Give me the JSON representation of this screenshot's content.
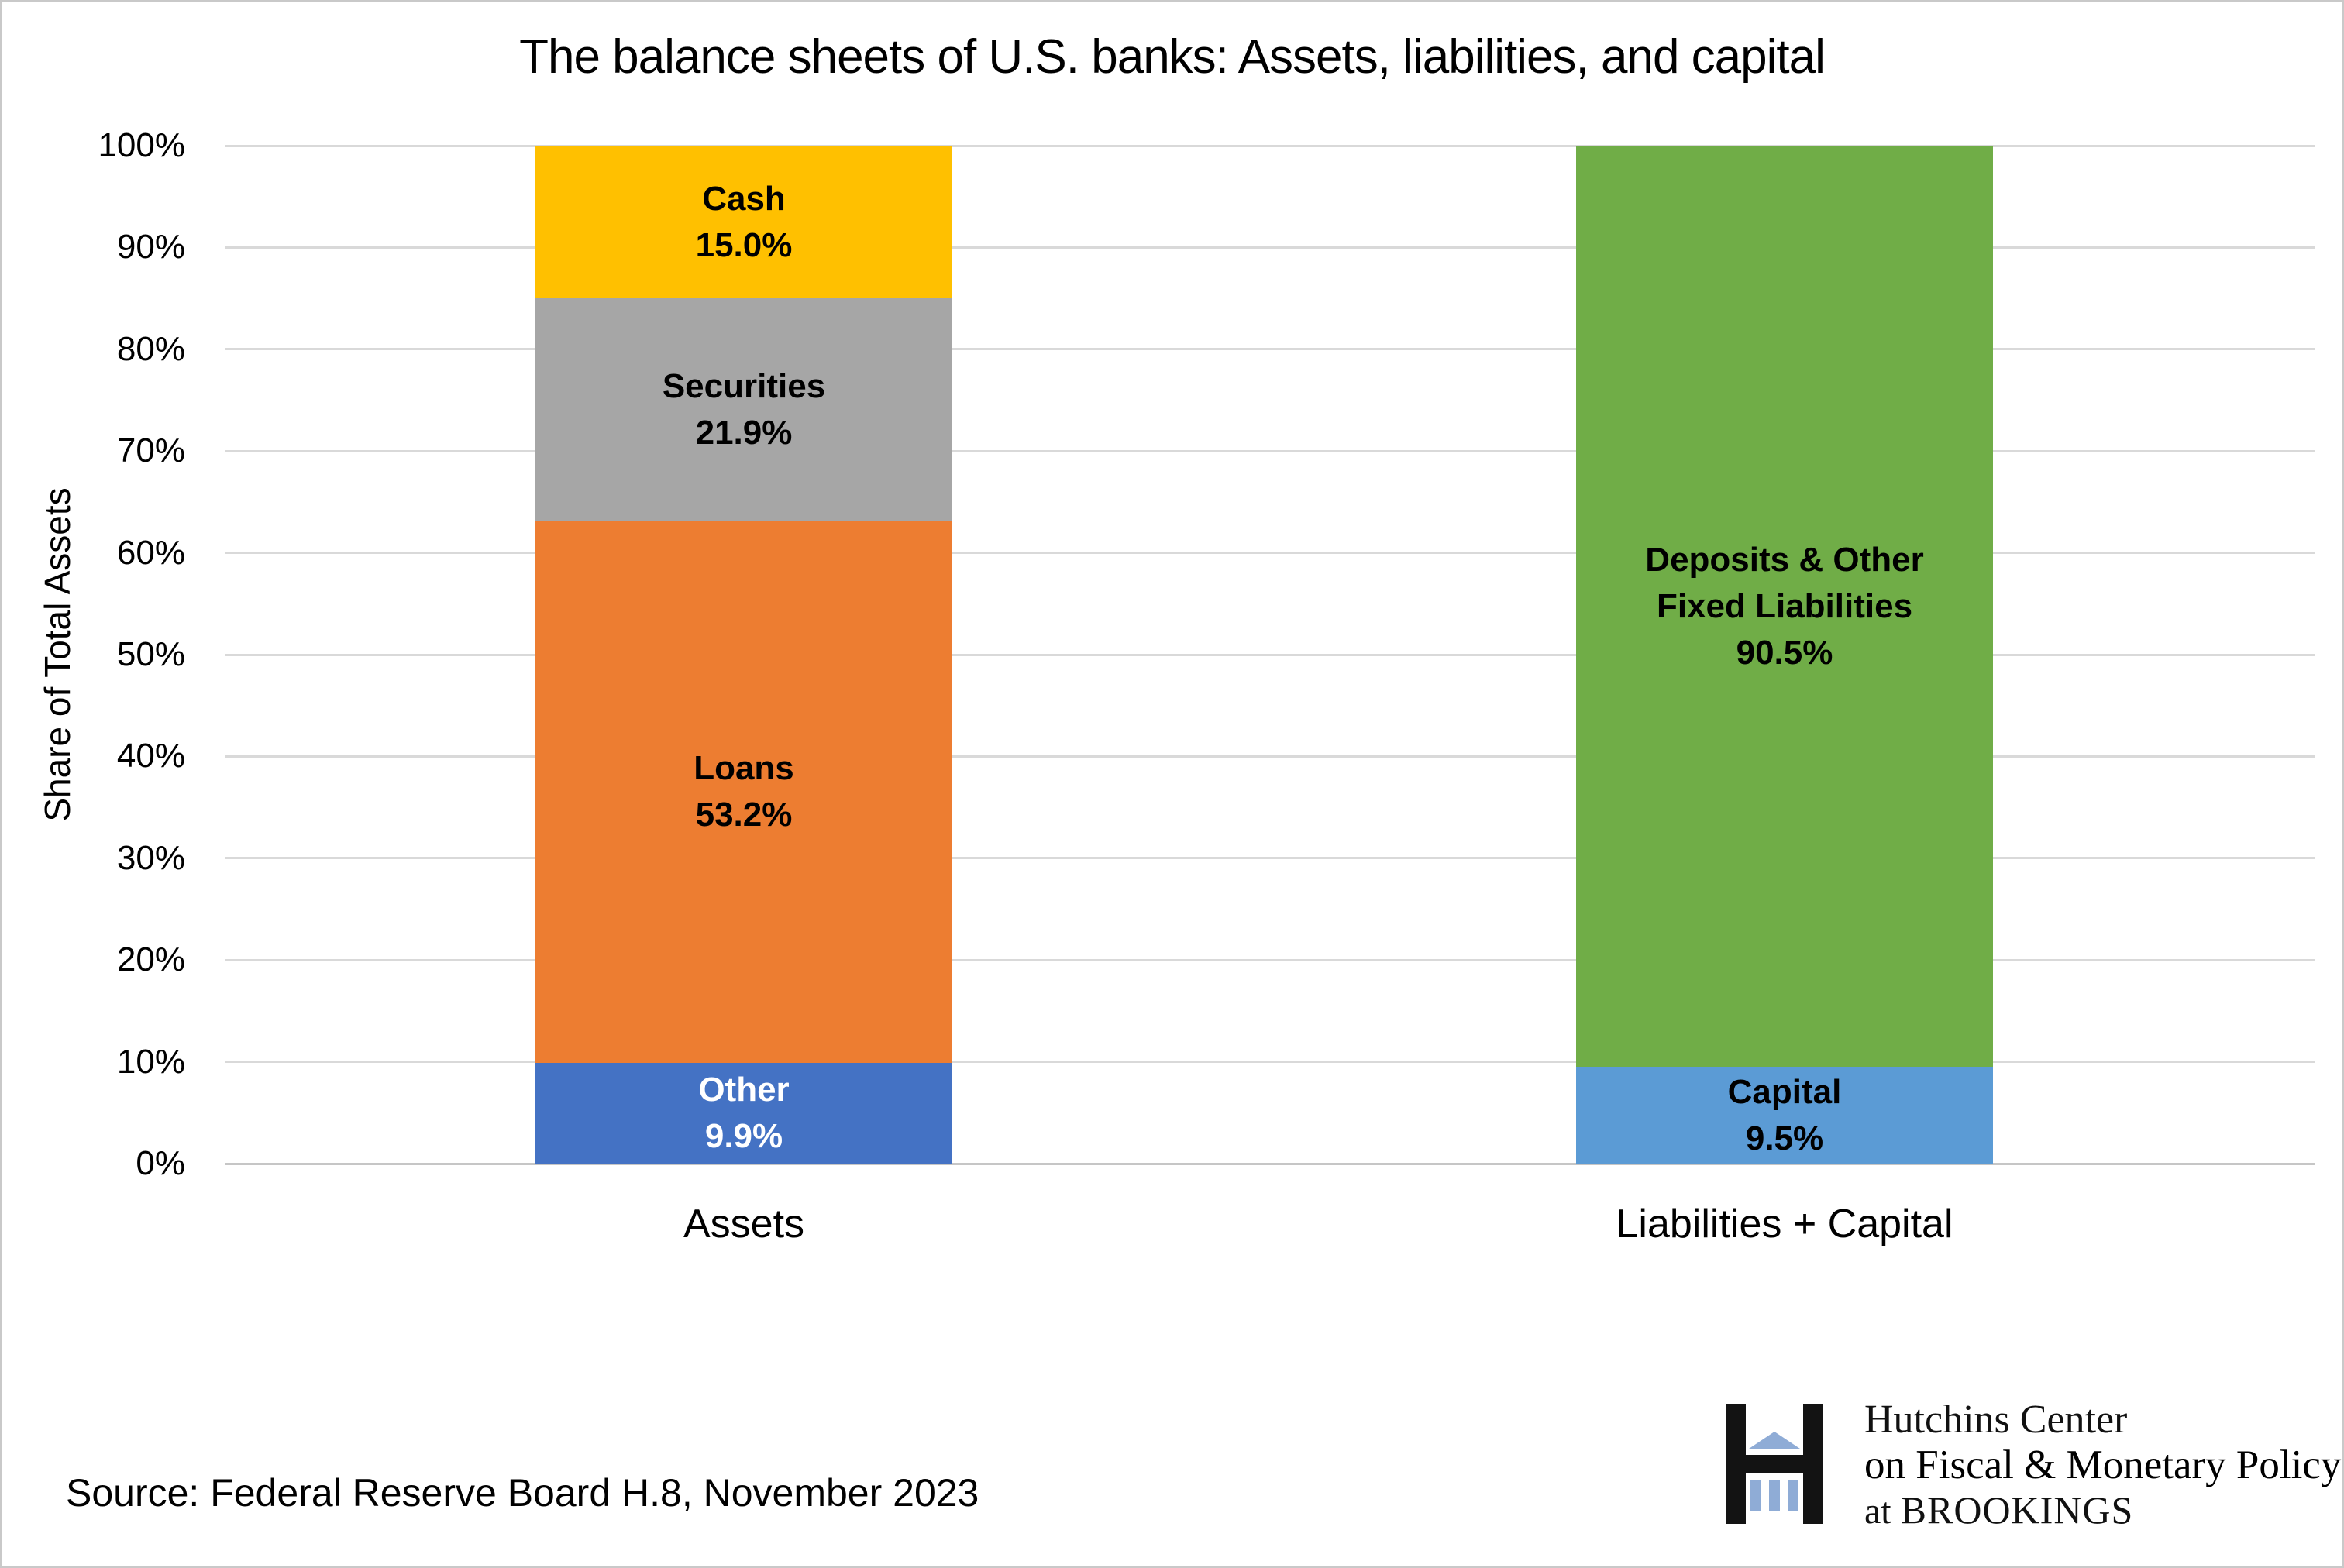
{
  "title": "The balance sheets of U.S. banks: Assets, liabilities, and capital",
  "source_note": "Source: Federal Reserve Board H.8, November 2023",
  "logo": {
    "mark": "hutchins-h-building-mark",
    "line1": "Hutchins Center",
    "line2": "on Fiscal & Monetary Policy",
    "line3_prefix": "at ",
    "line3_name": "BROOKINGS",
    "text_black": "#111111",
    "text_blue": "#9bb8df",
    "mark_black": "#131313",
    "mark_blue": "#8facd6"
  },
  "style": {
    "gridline_color": "#d9d9d9",
    "axisline_color": "#c6c6c6",
    "background": "#ffffff"
  },
  "chart_data": {
    "type": "bar",
    "stacked": true,
    "title": "The balance sheets of U.S. banks: Assets, liabilities, and capital",
    "xlabel": "",
    "ylabel": "Share of Total Assets",
    "ylim": [
      0,
      100
    ],
    "grid": true,
    "legend": false,
    "yticks": [
      {
        "value": 0,
        "label": "0%"
      },
      {
        "value": 10,
        "label": "10%"
      },
      {
        "value": 20,
        "label": "20%"
      },
      {
        "value": 30,
        "label": "30%"
      },
      {
        "value": 40,
        "label": "40%"
      },
      {
        "value": 50,
        "label": "50%"
      },
      {
        "value": 60,
        "label": "60%"
      },
      {
        "value": 70,
        "label": "70%"
      },
      {
        "value": 80,
        "label": "80%"
      },
      {
        "value": 90,
        "label": "90%"
      },
      {
        "value": 100,
        "label": "100%"
      }
    ],
    "categories": [
      "Assets",
      "Liabilities + Capital"
    ],
    "bars": [
      {
        "category": "Assets",
        "segments": [
          {
            "name": "Other",
            "name_lines": [
              "Other"
            ],
            "value": 9.9,
            "value_label": "9.9%",
            "color": "#4472c4",
            "text_color": "#ffffff"
          },
          {
            "name": "Loans",
            "name_lines": [
              "Loans"
            ],
            "value": 53.2,
            "value_label": "53.2%",
            "color": "#ed7d31",
            "text_color": "#000000"
          },
          {
            "name": "Securities",
            "name_lines": [
              "Securities"
            ],
            "value": 21.9,
            "value_label": "21.9%",
            "color": "#a6a6a6",
            "text_color": "#000000"
          },
          {
            "name": "Cash",
            "name_lines": [
              "Cash"
            ],
            "value": 15.0,
            "value_label": "15.0%",
            "color": "#ffc000",
            "text_color": "#000000"
          }
        ]
      },
      {
        "category": "Liabilities + Capital",
        "segments": [
          {
            "name": "Capital",
            "name_lines": [
              "Capital"
            ],
            "value": 9.5,
            "value_label": "9.5%",
            "color": "#5b9bd5",
            "text_color": "#000000"
          },
          {
            "name": "Deposits & Other Fixed Liabilities",
            "name_lines": [
              "Deposits & Other",
              "Fixed Liabilities"
            ],
            "value": 90.5,
            "value_label": "90.5%",
            "color": "#70ad47",
            "text_color": "#000000"
          }
        ]
      }
    ]
  }
}
